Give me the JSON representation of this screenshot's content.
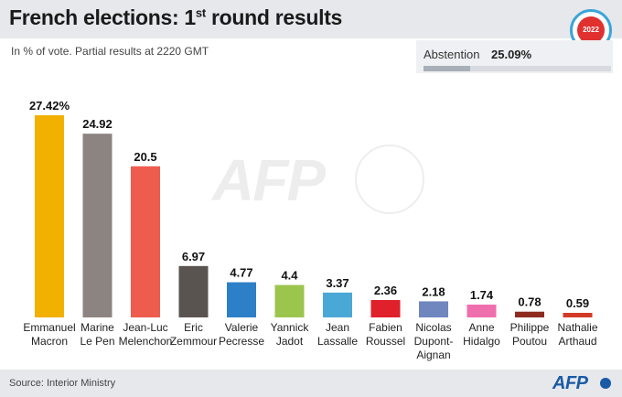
{
  "title_main": "French elections: 1",
  "title_sup": "st",
  "title_end": " round results",
  "subtitle": "In % of vote. Partial results at 2220 GMT",
  "abstention": {
    "label": "Abstention",
    "value_label": "25.09%",
    "value": 25.09
  },
  "badge": {
    "year": "2022"
  },
  "watermark": "AFP",
  "footer": {
    "source": "Source: Interior Ministry",
    "logo": "AFP"
  },
  "chart_data": {
    "type": "bar",
    "ylim": [
      0,
      30
    ],
    "grid": false,
    "xlabel": "",
    "ylabel": "",
    "bars": [
      {
        "line1": "Emmanuel",
        "line2": "Macron",
        "line3": "",
        "value": 27.42,
        "value_label": "27.42%",
        "color": "#f2b000"
      },
      {
        "line1": "Marine",
        "line2": "Le Pen",
        "line3": "",
        "value": 24.92,
        "value_label": "24.92",
        "color": "#8c8480"
      },
      {
        "line1": "Jean-Luc",
        "line2": "Melenchon",
        "line3": "",
        "value": 20.5,
        "value_label": "20.5",
        "color": "#ee5c4e"
      },
      {
        "line1": "Eric",
        "line2": "Zemmour",
        "line3": "",
        "value": 6.97,
        "value_label": "6.97",
        "color": "#5a5450"
      },
      {
        "line1": "Valerie",
        "line2": "Pecresse",
        "line3": "",
        "value": 4.77,
        "value_label": "4.77",
        "color": "#2d80c8"
      },
      {
        "line1": "Yannick",
        "line2": "Jadot",
        "line3": "",
        "value": 4.4,
        "value_label": "4.4",
        "color": "#9cc54e"
      },
      {
        "line1": "Jean",
        "line2": "Lassalle",
        "line3": "",
        "value": 3.37,
        "value_label": "3.37",
        "color": "#4aa8d6"
      },
      {
        "line1": "Fabien",
        "line2": "Roussel",
        "line3": "",
        "value": 2.36,
        "value_label": "2.36",
        "color": "#e0202a"
      },
      {
        "line1": "Nicolas",
        "line2": "Dupont-",
        "line3": "Aignan",
        "value": 2.18,
        "value_label": "2.18",
        "color": "#6f86bf"
      },
      {
        "line1": "Anne",
        "line2": "Hidalgo",
        "line3": "",
        "value": 1.74,
        "value_label": "1.74",
        "color": "#ef6fae"
      },
      {
        "line1": "Philippe",
        "line2": "Poutou",
        "line3": "",
        "value": 0.78,
        "value_label": "0.78",
        "color": "#8e2a1e"
      },
      {
        "line1": "Nathalie",
        "line2": "Arthaud",
        "line3": "",
        "value": 0.59,
        "value_label": "0.59",
        "color": "#d23a26"
      }
    ]
  }
}
